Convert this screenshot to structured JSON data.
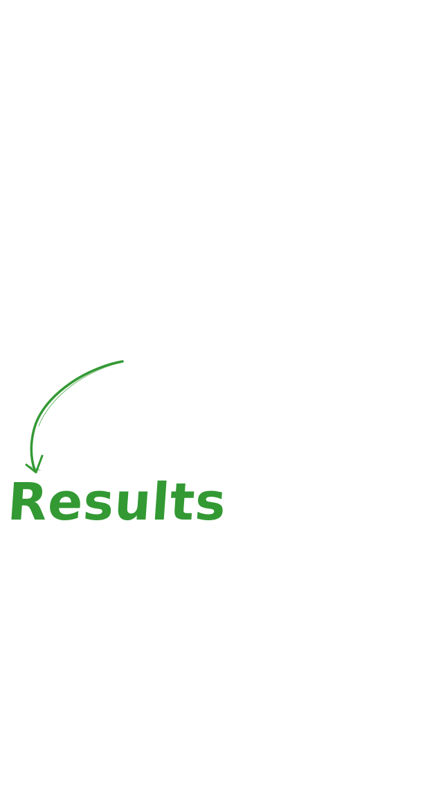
{
  "results": {
    "title": "Results",
    "color": "#339933"
  },
  "icons": {
    "arrow": "curved-arrow-down-icon"
  }
}
